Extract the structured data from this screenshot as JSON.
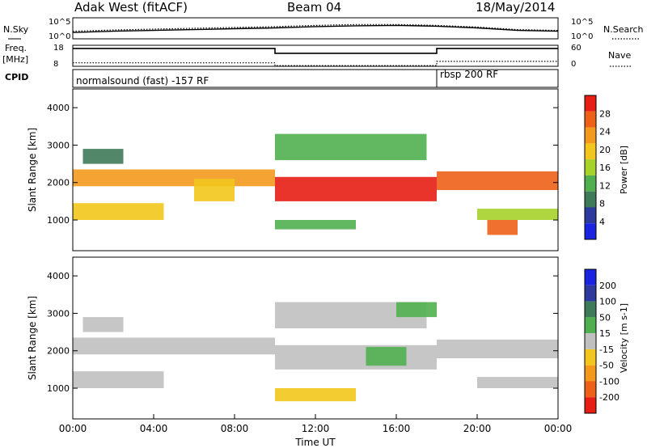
{
  "header": {
    "site": "Adak West (fitACF)",
    "beam": "Beam 04",
    "date": "18/May/2014"
  },
  "left_labels": {
    "nsky": "N.Sky",
    "freq_line1": "Freq.",
    "freq_line2": "[MHz]",
    "cpid": "CPID"
  },
  "right_labels": {
    "nsearch": "N.Search",
    "nave": "Nave"
  },
  "strip_ticks": {
    "noise_hi": "10^5",
    "noise_lo": "10^0",
    "freq_hi": "18",
    "freq_lo": "8",
    "nave_hi": "60",
    "nave_lo": "0"
  },
  "cpid_labels": {
    "first": "normalsound (fast) -157 RF",
    "second": "rbsp 200 RF"
  },
  "x_axis": {
    "label": "Time UT",
    "ticks": [
      "00:00",
      "04:00",
      "08:00",
      "12:00",
      "16:00",
      "20:00",
      "00:00"
    ]
  },
  "colors": {
    "power_scale": [
      "#1a23e0",
      "#2b3a9c",
      "#3f7a5a",
      "#50b050",
      "#a6d22a",
      "#f2c61c",
      "#f39a1c",
      "#ee6018",
      "#e61e14"
    ],
    "velocity_scale": [
      "#1a23e0",
      "#2b3a9c",
      "#3f7a5a",
      "#50b050",
      "#c0c0c0",
      "#f2c61c",
      "#f39a1c",
      "#ee6018",
      "#e61e14"
    ]
  },
  "chart_data": [
    {
      "type": "line",
      "panel": "noise",
      "series": [
        {
          "name": "N.Sky",
          "x": [
            0,
            2,
            4,
            6,
            8,
            10,
            12,
            14,
            16,
            18,
            20,
            22,
            24
          ],
          "y": [
            1.5,
            1.8,
            2.0,
            2.2,
            2.4,
            2.6,
            2.9,
            3.1,
            3.2,
            3.0,
            2.6,
            2.0,
            1.8
          ]
        },
        {
          "name": "N.Search",
          "x": [
            0,
            2,
            4,
            6,
            8,
            10,
            12,
            14,
            16,
            18,
            20,
            22,
            24
          ],
          "y": [
            1.8,
            2.1,
            2.3,
            2.5,
            2.7,
            2.9,
            3.2,
            3.4,
            3.4,
            3.2,
            2.8,
            2.2,
            2.0
          ]
        }
      ],
      "ylim": [
        0,
        5
      ],
      "xlim": [
        0,
        24
      ]
    },
    {
      "type": "line",
      "panel": "frequency_nave",
      "series": [
        {
          "name": "Freq.",
          "x": [
            0,
            10,
            10,
            18,
            18,
            24
          ],
          "y": [
            16.5,
            16.5,
            14.2,
            14.2,
            16.5,
            16.5
          ]
        },
        {
          "name": "Nave",
          "x": [
            0,
            10,
            10,
            18,
            18,
            24
          ],
          "y": [
            10,
            10,
            2,
            2,
            14,
            14
          ]
        }
      ],
      "ylim": [
        8,
        18
      ],
      "xlim": [
        0,
        24
      ]
    },
    {
      "type": "heatmap",
      "panel": "power",
      "ylabel": "Slant Range [km]",
      "yticks": [
        "1000",
        "2000",
        "3000",
        "4000"
      ],
      "ylim": [
        180,
        4500
      ],
      "xlim": [
        0,
        24
      ],
      "colorbar_label": "Power [dB]",
      "colorbar_ticks": [
        "4",
        "8",
        "12",
        "16",
        "20",
        "24",
        "28"
      ],
      "bands": [
        {
          "x0": 0.0,
          "x1": 10.0,
          "y0": 1900,
          "y1": 2350,
          "level": 6
        },
        {
          "x0": 0.0,
          "x1": 4.5,
          "y0": 1000,
          "y1": 1450,
          "level": 5
        },
        {
          "x0": 0.5,
          "x1": 2.5,
          "y0": 2500,
          "y1": 2900,
          "level": 2
        },
        {
          "x0": 6.0,
          "x1": 8.0,
          "y0": 1500,
          "y1": 2100,
          "level": 5
        },
        {
          "x0": 10.0,
          "x1": 18.0,
          "y0": 1500,
          "y1": 2150,
          "level": 8
        },
        {
          "x0": 10.0,
          "x1": 14.0,
          "y0": 750,
          "y1": 1000,
          "level": 3
        },
        {
          "x0": 10.0,
          "x1": 17.5,
          "y0": 2600,
          "y1": 3300,
          "level": 3
        },
        {
          "x0": 18.0,
          "x1": 24.0,
          "y0": 1800,
          "y1": 2300,
          "level": 7
        },
        {
          "x0": 20.0,
          "x1": 24.0,
          "y0": 1000,
          "y1": 1300,
          "level": 4
        },
        {
          "x0": 20.5,
          "x1": 22.0,
          "y0": 600,
          "y1": 1000,
          "level": 7
        }
      ]
    },
    {
      "type": "heatmap",
      "panel": "velocity",
      "ylabel": "Slant Range [km]",
      "yticks": [
        "1000",
        "2000",
        "3000",
        "4000"
      ],
      "ylim": [
        180,
        4500
      ],
      "xlim": [
        0,
        24
      ],
      "colorbar_label": "Velocity [m s-1]",
      "colorbar_ticks": [
        "200",
        "100",
        "50",
        "15",
        "-15",
        "-50",
        "-100",
        "-200"
      ],
      "bands": [
        {
          "x0": 0.0,
          "x1": 10.0,
          "y0": 1900,
          "y1": 2350,
          "level": 4
        },
        {
          "x0": 0.0,
          "x1": 4.5,
          "y0": 1000,
          "y1": 1450,
          "level": 4
        },
        {
          "x0": 0.5,
          "x1": 2.5,
          "y0": 2500,
          "y1": 2900,
          "level": 4
        },
        {
          "x0": 10.0,
          "x1": 18.0,
          "y0": 1500,
          "y1": 2150,
          "level": 4
        },
        {
          "x0": 10.0,
          "x1": 14.0,
          "y0": 650,
          "y1": 1000,
          "level": 5
        },
        {
          "x0": 10.0,
          "x1": 17.5,
          "y0": 2600,
          "y1": 3300,
          "level": 4
        },
        {
          "x0": 16.0,
          "x1": 18.0,
          "y0": 2900,
          "y1": 3300,
          "level": 3
        },
        {
          "x0": 14.5,
          "x1": 16.5,
          "y0": 1600,
          "y1": 2100,
          "level": 3
        },
        {
          "x0": 18.0,
          "x1": 24.0,
          "y0": 1800,
          "y1": 2300,
          "level": 4
        },
        {
          "x0": 20.0,
          "x1": 24.0,
          "y0": 1000,
          "y1": 1300,
          "level": 4
        }
      ]
    }
  ]
}
